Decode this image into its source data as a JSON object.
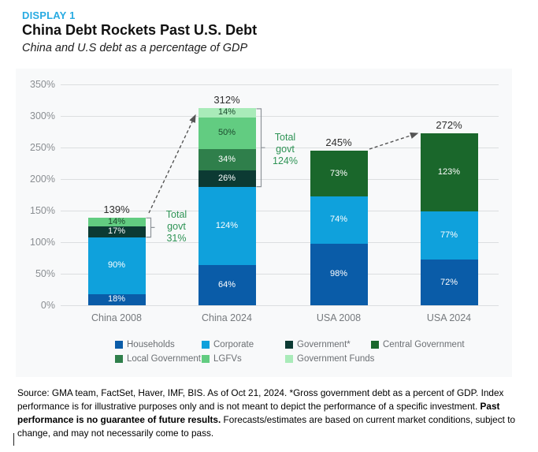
{
  "header": {
    "display_label": "DISPLAY 1",
    "title": "China Debt Rockets Past U.S. Debt",
    "subtitle": "China and U.S debt as a percentage of GDP"
  },
  "chart_data": {
    "type": "bar",
    "stacked": true,
    "title": "China and U.S debt as a percentage of GDP",
    "categories": [
      "China 2008",
      "China 2024",
      "USA 2008",
      "USA 2024"
    ],
    "series": [
      {
        "name": "Households",
        "color": "#0A5CA8",
        "label_color": "#FFFFFF",
        "values": [
          18,
          64,
          98,
          72
        ]
      },
      {
        "name": "Corporate",
        "color": "#0FA1DC",
        "label_color": "#FFFFFF",
        "values": [
          90,
          124,
          74,
          77
        ]
      },
      {
        "name": "Government*",
        "color": "#0C3A33",
        "label_color": "#FFFFFF",
        "values": [
          17,
          26,
          0,
          0
        ]
      },
      {
        "name": "Local Government",
        "color": "#2F7F4B",
        "label_color": "#FFFFFF",
        "values": [
          0,
          34,
          0,
          0
        ]
      },
      {
        "name": "LGFVs",
        "color": "#62CC81",
        "label_color": "#1C4B2E",
        "values": [
          14,
          50,
          0,
          0
        ]
      },
      {
        "name": "Government Funds",
        "color": "#A9EBB9",
        "label_color": "#1C4B2E",
        "values": [
          0,
          14,
          0,
          0
        ]
      },
      {
        "name": "Central Government",
        "color": "#1A672B",
        "label_color": "#FFFFFF",
        "values": [
          0,
          0,
          73,
          123
        ]
      }
    ],
    "bar_totals": [
      "139%",
      "312%",
      "245%",
      "272%"
    ],
    "yticks": [
      "0%",
      "50%",
      "100%",
      "150%",
      "200%",
      "250%",
      "300%",
      "350%"
    ],
    "ylim": [
      0,
      350
    ],
    "grid": true,
    "legend_position": "bottom",
    "legend_rows": [
      [
        "Households",
        "Corporate",
        "Government*",
        "Central Government"
      ],
      [
        "Local Government",
        "LGFVs",
        "Government Funds"
      ]
    ],
    "annotations": [
      {
        "target": "China 2008",
        "text": "Total\ngovt\n31%"
      },
      {
        "target": "China 2024",
        "text": "Total\ngovt\n124%"
      }
    ]
  },
  "footer": {
    "source_text": "Source: GMA team, FactSet, Haver, IMF, BIS. As of Oct 21, 2024. *Gross government debt as a percent of GDP. Index performance is for illustrative purposes only and is not meant to depict the performance of a specific investment.  ",
    "bold_text": "Past performance is no guarantee of future results.",
    "after_text": " Forecasts/estimates are based on current market conditions, subject to change, and may not necessarily come to pass."
  }
}
